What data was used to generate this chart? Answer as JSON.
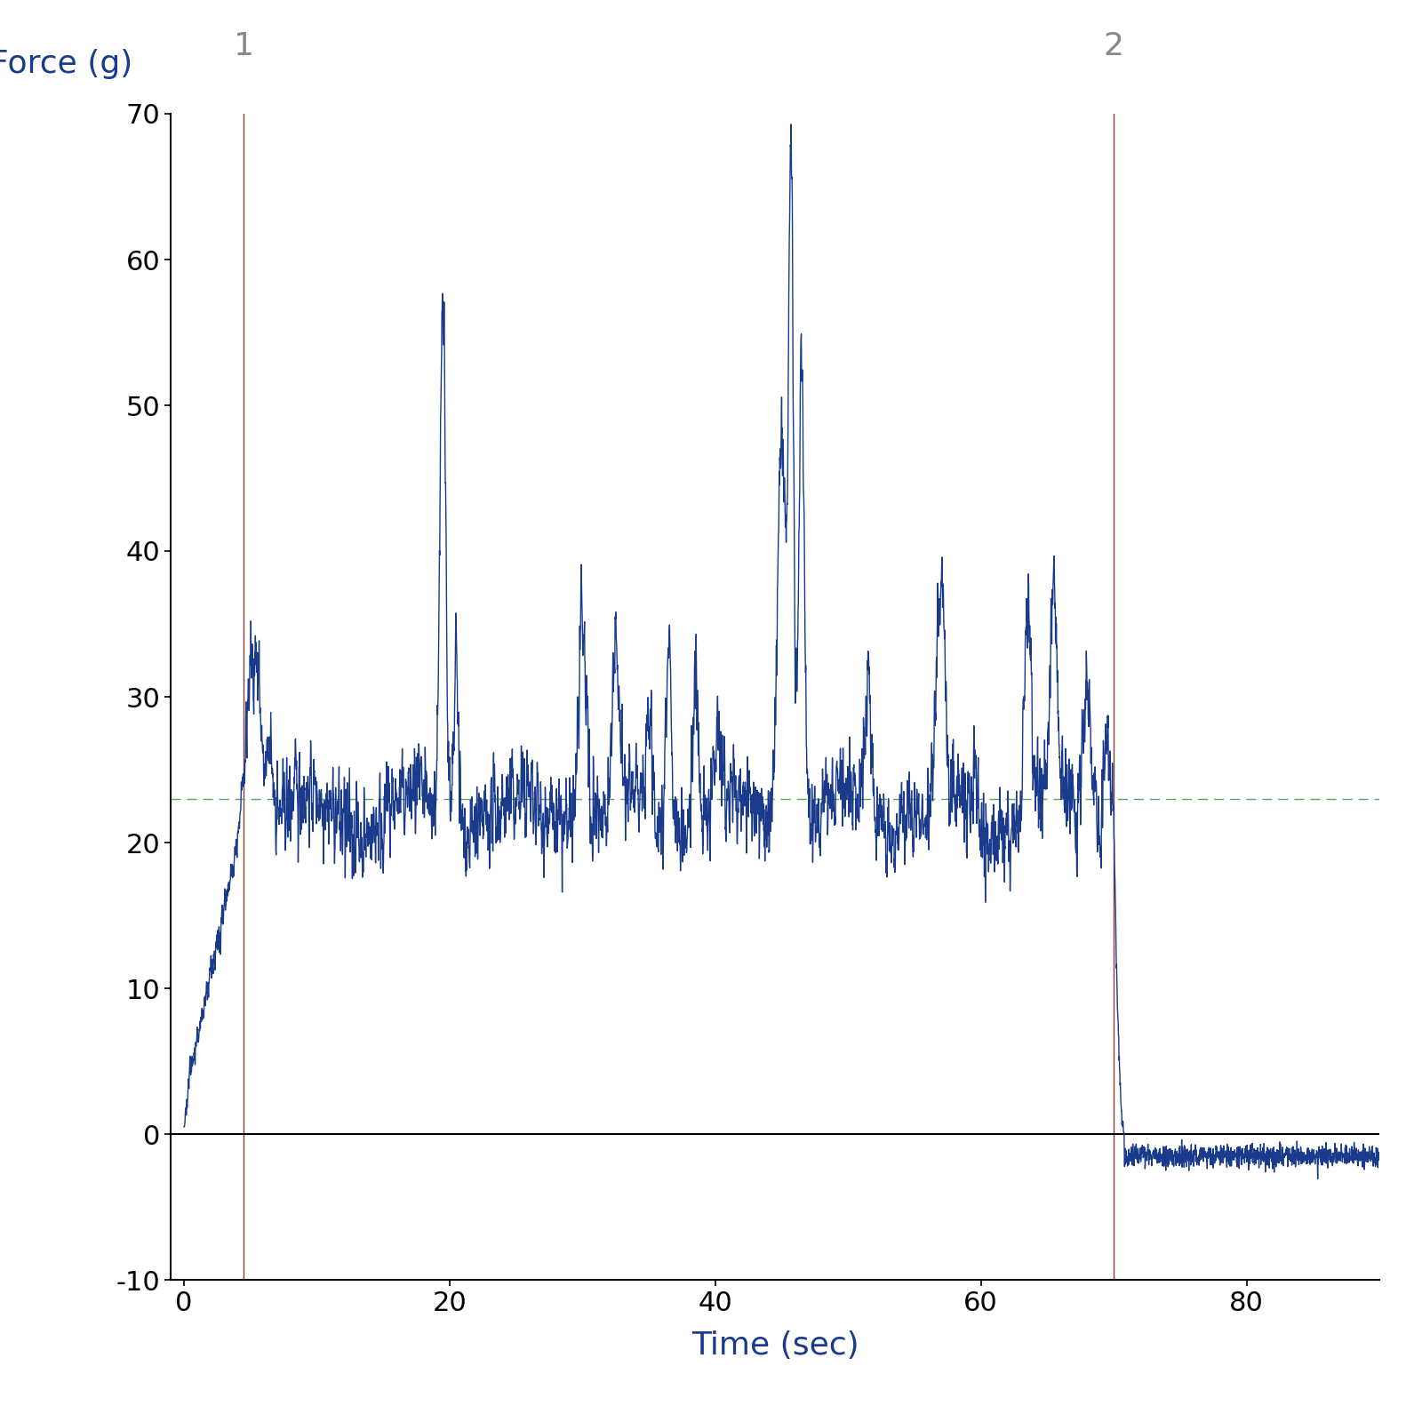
{
  "xlabel": "Time (sec)",
  "ylabel": "Force (g)",
  "xlim": [
    -1,
    90
  ],
  "ylim": [
    -10,
    70
  ],
  "xticks": [
    0,
    20,
    40,
    60,
    80
  ],
  "yticks": [
    -10,
    0,
    10,
    20,
    30,
    40,
    50,
    60,
    70
  ],
  "line_color": "#1a3a8c",
  "vline1_x": 4.5,
  "vline2_x": 70.0,
  "vline_color": "#8B3A3A",
  "hline_y": 23.0,
  "hline_color": "#55aa55",
  "xlabel_color": "#1a3a8c",
  "ylabel_color": "#1a3a8c",
  "label1": "1",
  "label2": "2",
  "label_color": "#888888",
  "label_fontsize": 26,
  "axis_label_fontsize": 26,
  "tick_fontsize": 22,
  "bg_color": "#ffffff",
  "line_width": 1.0,
  "seed": 42
}
